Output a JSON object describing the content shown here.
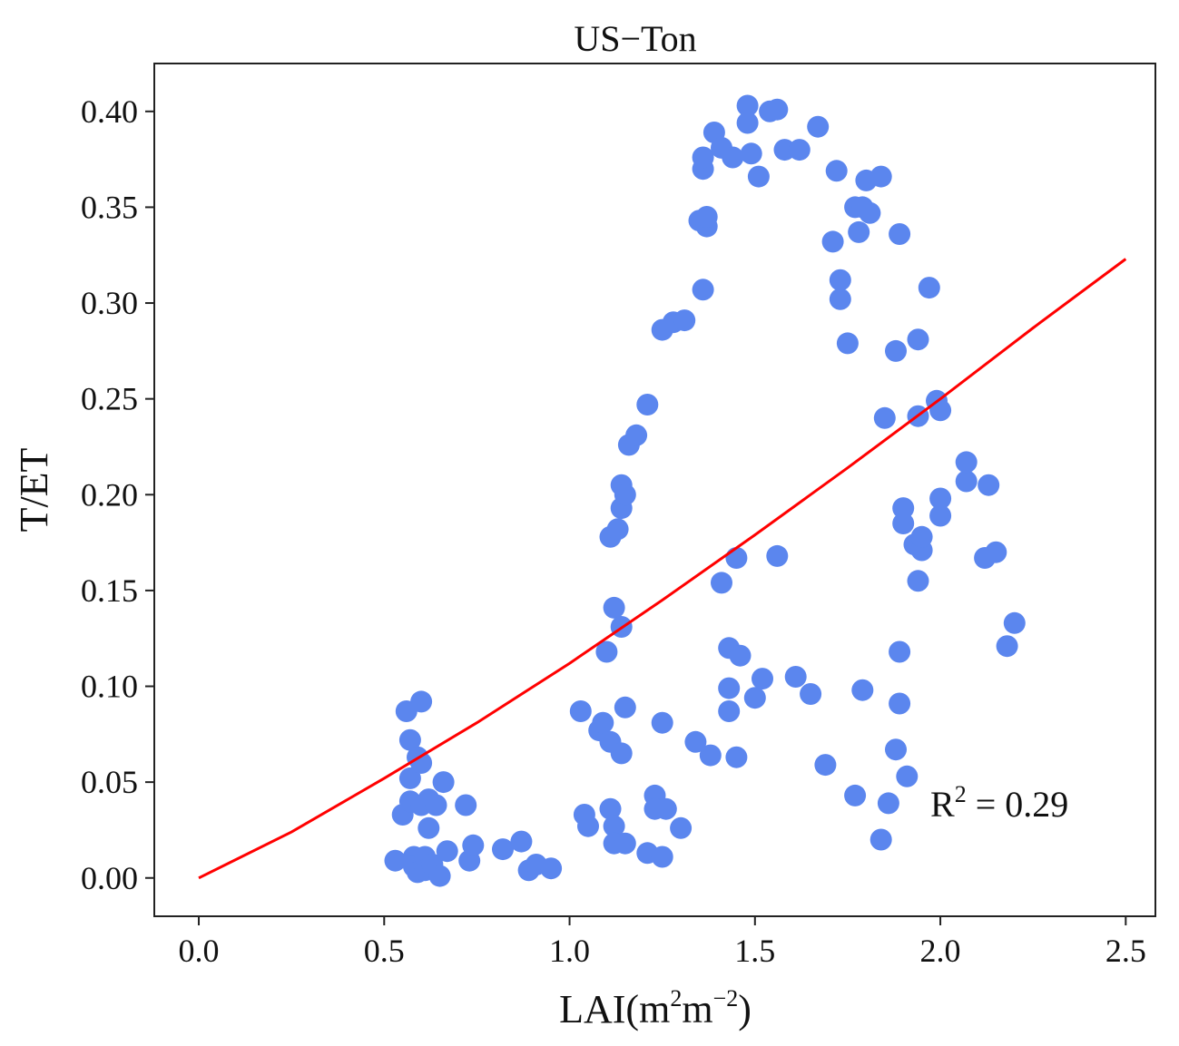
{
  "chart_data": {
    "type": "scatter",
    "title": "US−Ton",
    "xlabel": "LAI",
    "xlabel_unit_a": "m",
    "xlabel_unit_a_exp": "2",
    "xlabel_unit_b": "m",
    "xlabel_unit_b_exp": "−2",
    "ylabel": "T/ET",
    "xlim": [
      -0.12,
      2.58
    ],
    "ylim": [
      -0.02,
      0.425
    ],
    "xticks": [
      0.0,
      0.5,
      1.0,
      1.5,
      2.0,
      2.5
    ],
    "xtick_labels": [
      "0.0",
      "0.5",
      "1.0",
      "1.5",
      "2.0",
      "2.5"
    ],
    "yticks": [
      0.0,
      0.05,
      0.1,
      0.15,
      0.2,
      0.25,
      0.3,
      0.35,
      0.4
    ],
    "ytick_labels": [
      "0.00",
      "0.05",
      "0.10",
      "0.15",
      "0.20",
      "0.25",
      "0.30",
      "0.35",
      "0.40"
    ],
    "grid": false,
    "annotation": {
      "label": "R",
      "exp": "2",
      "text": " = 0.29"
    },
    "point_color": "#5b86ee",
    "fit_color": "#ff0000",
    "fit_line": [
      [
        0.0,
        0.0
      ],
      [
        0.25,
        0.024
      ],
      [
        0.5,
        0.052
      ],
      [
        0.75,
        0.081
      ],
      [
        1.0,
        0.112
      ],
      [
        1.25,
        0.145
      ],
      [
        1.5,
        0.179
      ],
      [
        1.75,
        0.214
      ],
      [
        2.0,
        0.25
      ],
      [
        2.25,
        0.287
      ],
      [
        2.5,
        0.323
      ]
    ],
    "points": [
      [
        0.53,
        0.009
      ],
      [
        0.55,
        0.033
      ],
      [
        0.56,
        0.087
      ],
      [
        0.57,
        0.072
      ],
      [
        0.57,
        0.052
      ],
      [
        0.57,
        0.04
      ],
      [
        0.58,
        0.011
      ],
      [
        0.58,
        0.006
      ],
      [
        0.59,
        0.003
      ],
      [
        0.59,
        0.063
      ],
      [
        0.6,
        0.092
      ],
      [
        0.6,
        0.06
      ],
      [
        0.6,
        0.038
      ],
      [
        0.61,
        0.011
      ],
      [
        0.61,
        0.004
      ],
      [
        0.62,
        0.026
      ],
      [
        0.62,
        0.041
      ],
      [
        0.63,
        0.007
      ],
      [
        0.64,
        0.038
      ],
      [
        0.65,
        0.001
      ],
      [
        0.66,
        0.05
      ],
      [
        0.67,
        0.014
      ],
      [
        0.72,
        0.038
      ],
      [
        0.73,
        0.009
      ],
      [
        0.74,
        0.017
      ],
      [
        0.82,
        0.015
      ],
      [
        0.87,
        0.019
      ],
      [
        0.89,
        0.004
      ],
      [
        0.91,
        0.007
      ],
      [
        0.95,
        0.005
      ],
      [
        1.03,
        0.087
      ],
      [
        1.04,
        0.033
      ],
      [
        1.05,
        0.027
      ],
      [
        1.08,
        0.077
      ],
      [
        1.09,
        0.081
      ],
      [
        1.1,
        0.118
      ],
      [
        1.11,
        0.071
      ],
      [
        1.11,
        0.036
      ],
      [
        1.12,
        0.027
      ],
      [
        1.12,
        0.018
      ],
      [
        1.11,
        0.178
      ],
      [
        1.12,
        0.141
      ],
      [
        1.13,
        0.182
      ],
      [
        1.14,
        0.131
      ],
      [
        1.14,
        0.065
      ],
      [
        1.15,
        0.018
      ],
      [
        1.15,
        0.089
      ],
      [
        1.14,
        0.193
      ],
      [
        1.14,
        0.205
      ],
      [
        1.15,
        0.2
      ],
      [
        1.16,
        0.226
      ],
      [
        1.18,
        0.231
      ],
      [
        1.21,
        0.247
      ],
      [
        1.21,
        0.013
      ],
      [
        1.23,
        0.043
      ],
      [
        1.23,
        0.036
      ],
      [
        1.25,
        0.081
      ],
      [
        1.25,
        0.011
      ],
      [
        1.26,
        0.036
      ],
      [
        1.25,
        0.286
      ],
      [
        1.28,
        0.29
      ],
      [
        1.3,
        0.026
      ],
      [
        1.31,
        0.291
      ],
      [
        1.34,
        0.071
      ],
      [
        1.36,
        0.307
      ],
      [
        1.35,
        0.343
      ],
      [
        1.36,
        0.37
      ],
      [
        1.36,
        0.376
      ],
      [
        1.37,
        0.34
      ],
      [
        1.37,
        0.345
      ],
      [
        1.38,
        0.064
      ],
      [
        1.39,
        0.389
      ],
      [
        1.41,
        0.381
      ],
      [
        1.41,
        0.154
      ],
      [
        1.43,
        0.12
      ],
      [
        1.43,
        0.099
      ],
      [
        1.43,
        0.087
      ],
      [
        1.44,
        0.376
      ],
      [
        1.45,
        0.063
      ],
      [
        1.45,
        0.167
      ],
      [
        1.46,
        0.116
      ],
      [
        1.48,
        0.403
      ],
      [
        1.48,
        0.394
      ],
      [
        1.49,
        0.378
      ],
      [
        1.5,
        0.094
      ],
      [
        1.51,
        0.366
      ],
      [
        1.52,
        0.104
      ],
      [
        1.54,
        0.4
      ],
      [
        1.56,
        0.401
      ],
      [
        1.56,
        0.168
      ],
      [
        1.58,
        0.38
      ],
      [
        1.61,
        0.105
      ],
      [
        1.62,
        0.38
      ],
      [
        1.65,
        0.096
      ],
      [
        1.67,
        0.392
      ],
      [
        1.69,
        0.059
      ],
      [
        1.71,
        0.332
      ],
      [
        1.72,
        0.369
      ],
      [
        1.73,
        0.302
      ],
      [
        1.73,
        0.312
      ],
      [
        1.75,
        0.279
      ],
      [
        1.77,
        0.35
      ],
      [
        1.77,
        0.043
      ],
      [
        1.78,
        0.337
      ],
      [
        1.79,
        0.098
      ],
      [
        1.79,
        0.35
      ],
      [
        1.8,
        0.364
      ],
      [
        1.81,
        0.347
      ],
      [
        1.84,
        0.366
      ],
      [
        1.84,
        0.02
      ],
      [
        1.85,
        0.24
      ],
      [
        1.86,
        0.039
      ],
      [
        1.88,
        0.275
      ],
      [
        1.88,
        0.067
      ],
      [
        1.89,
        0.336
      ],
      [
        1.89,
        0.118
      ],
      [
        1.89,
        0.091
      ],
      [
        1.9,
        0.193
      ],
      [
        1.9,
        0.185
      ],
      [
        1.91,
        0.053
      ],
      [
        1.93,
        0.174
      ],
      [
        1.94,
        0.155
      ],
      [
        1.94,
        0.281
      ],
      [
        1.94,
        0.241
      ],
      [
        1.95,
        0.171
      ],
      [
        1.95,
        0.178
      ],
      [
        1.97,
        0.308
      ],
      [
        1.99,
        0.249
      ],
      [
        2.0,
        0.244
      ],
      [
        2.0,
        0.189
      ],
      [
        2.0,
        0.198
      ],
      [
        2.07,
        0.207
      ],
      [
        2.07,
        0.217
      ],
      [
        2.12,
        0.167
      ],
      [
        2.13,
        0.205
      ],
      [
        2.15,
        0.17
      ],
      [
        2.18,
        0.121
      ],
      [
        2.2,
        0.133
      ]
    ]
  }
}
